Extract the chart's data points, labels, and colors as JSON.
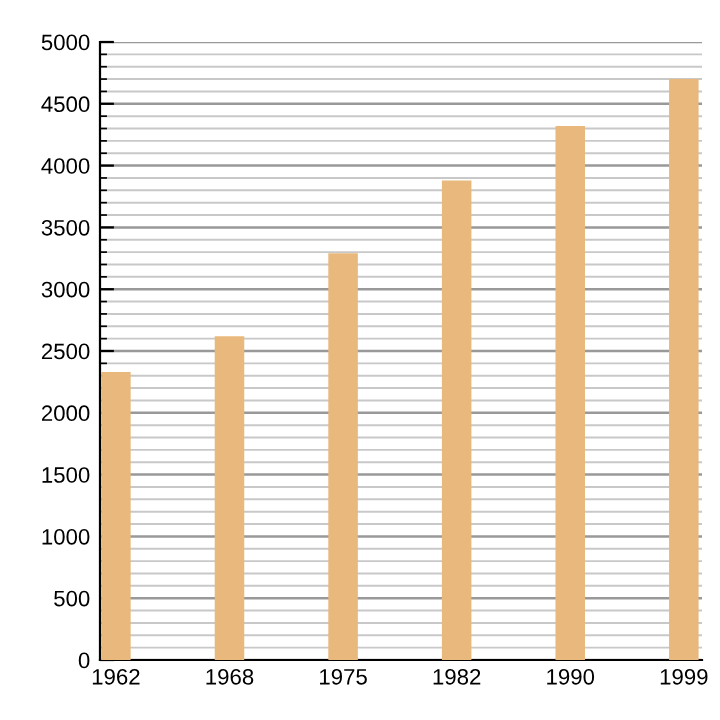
{
  "chart_data": {
    "type": "bar",
    "categories": [
      "1962",
      "1968",
      "1975",
      "1982",
      "1990",
      "1999"
    ],
    "values": [
      2330,
      2620,
      3290,
      3880,
      4320,
      4700
    ],
    "color": "#e8b87c",
    "ylim": [
      0,
      5000
    ],
    "yticks": [
      0,
      500,
      1000,
      1500,
      2000,
      2500,
      3000,
      3500,
      4000,
      4500,
      5000
    ],
    "grid": "y"
  }
}
